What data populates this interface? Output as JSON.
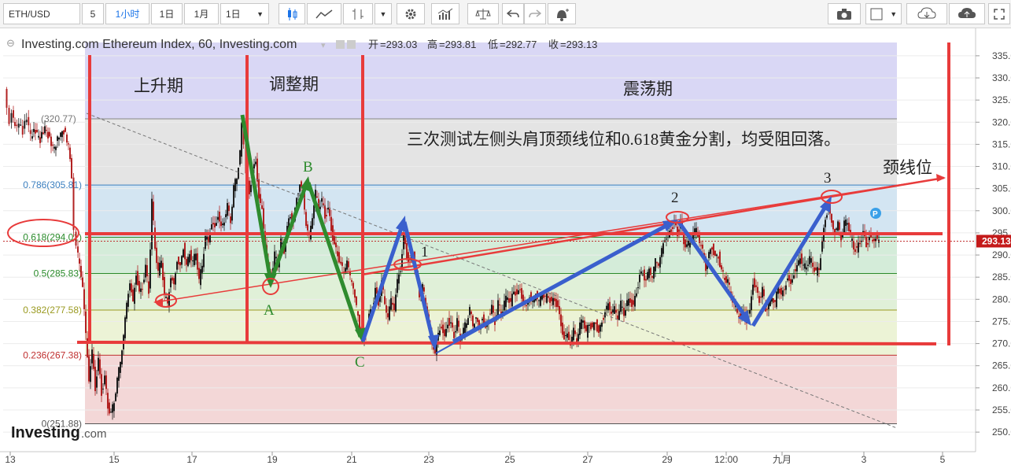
{
  "toolbar": {
    "symbol": "ETH/USD",
    "interval": "5",
    "interval_active": "1小时",
    "period_1d": "1日",
    "period_1m": "1月",
    "period_select": "1日",
    "dropdown_arrow": "▼"
  },
  "colors": {
    "up": "#1f1f1f",
    "down": "#b22222",
    "accent_red": "#e83b3b",
    "arrow_green": "#2e8b2e",
    "arrow_blue": "#3a5fcd"
  },
  "chart_data": {
    "type": "candlestick",
    "title": "Investing.com Ethereum Index, 60, Investing.com",
    "ohlc_readout": {
      "open_label": "开",
      "open": "293.03",
      "high_label": "高",
      "high": "293.81",
      "low_label": "低",
      "low": "292.77",
      "close_label": "收",
      "close": "293.13"
    },
    "last_price": "293.13",
    "ylim": [
      247,
      338
    ],
    "y_ticks": [
      250,
      255,
      260,
      265,
      270,
      275,
      280,
      285,
      290,
      295,
      300,
      305,
      310,
      315,
      320,
      325,
      330,
      335
    ],
    "x_ticks": [
      "13",
      "15",
      "17",
      "19",
      "21",
      "23",
      "25",
      "27",
      "29",
      "12:00",
      "九月",
      "3",
      "5"
    ],
    "fib_levels": [
      {
        "label": "0.786(305.81)",
        "value": 305.81,
        "color": "#3c7fbf"
      },
      {
        "label": "0.618(294.01)",
        "value": 294.01,
        "color": "#2a8a2a"
      },
      {
        "label": "0.5(285.83)",
        "value": 285.83,
        "color": "#2a8a2a"
      },
      {
        "label": "0.382(277.58)",
        "value": 277.58,
        "color": "#9a9a20"
      },
      {
        "label": "0.236(267.38)",
        "value": 267.38,
        "color": "#c03030"
      },
      {
        "label": "0(251.88)",
        "value": 251.88,
        "color": "#555555"
      }
    ],
    "fib_top_label": "(320.77)",
    "fib_top_value": 320.77,
    "price_path_points": [
      [
        7,
        328
      ],
      [
        10,
        324
      ],
      [
        13,
        320
      ],
      [
        16,
        322
      ],
      [
        20,
        319
      ],
      [
        25,
        320
      ],
      [
        30,
        318
      ],
      [
        35,
        321
      ],
      [
        40,
        317
      ],
      [
        46,
        318
      ],
      [
        52,
        316
      ],
      [
        58,
        319
      ],
      [
        64,
        316
      ],
      [
        70,
        314
      ],
      [
        76,
        317
      ],
      [
        82,
        318
      ],
      [
        88,
        315
      ],
      [
        92,
        308
      ],
      [
        95,
        296
      ],
      [
        98,
        292
      ],
      [
        102,
        288
      ],
      [
        106,
        283
      ],
      [
        110,
        272
      ],
      [
        114,
        262
      ],
      [
        118,
        268
      ],
      [
        122,
        260
      ],
      [
        126,
        266
      ],
      [
        130,
        259
      ],
      [
        134,
        262
      ],
      [
        138,
        256
      ],
      [
        142,
        254
      ],
      [
        146,
        257
      ],
      [
        150,
        262
      ],
      [
        154,
        266
      ],
      [
        158,
        272
      ],
      [
        162,
        279
      ],
      [
        166,
        284
      ],
      [
        170,
        279
      ],
      [
        174,
        286
      ],
      [
        178,
        281
      ],
      [
        182,
        283
      ],
      [
        186,
        287
      ],
      [
        190,
        282
      ],
      [
        194,
        302
      ],
      [
        198,
        292
      ],
      [
        202,
        286
      ],
      [
        206,
        289
      ],
      [
        210,
        281
      ],
      [
        214,
        279
      ],
      [
        218,
        285
      ],
      [
        222,
        283
      ],
      [
        226,
        289
      ],
      [
        230,
        287
      ],
      [
        234,
        292
      ],
      [
        238,
        287
      ],
      [
        242,
        291
      ],
      [
        246,
        288
      ],
      [
        250,
        291
      ],
      [
        254,
        284
      ],
      [
        258,
        288
      ],
      [
        262,
        294
      ],
      [
        266,
        293
      ],
      [
        270,
        297
      ],
      [
        274,
        296
      ],
      [
        278,
        299
      ],
      [
        282,
        296
      ],
      [
        286,
        298
      ],
      [
        290,
        301
      ],
      [
        294,
        298
      ],
      [
        298,
        305
      ],
      [
        302,
        308
      ],
      [
        306,
        313
      ],
      [
        308,
        319
      ],
      [
        311,
        315
      ],
      [
        314,
        308
      ],
      [
        318,
        304
      ],
      [
        322,
        309
      ],
      [
        326,
        311
      ],
      [
        330,
        303
      ],
      [
        334,
        300
      ],
      [
        338,
        292
      ],
      [
        342,
        287
      ],
      [
        346,
        285
      ],
      [
        350,
        290
      ],
      [
        354,
        288
      ],
      [
        358,
        293
      ],
      [
        362,
        291
      ],
      [
        366,
        296
      ],
      [
        370,
        299
      ],
      [
        374,
        297
      ],
      [
        378,
        303
      ],
      [
        382,
        306
      ],
      [
        386,
        304
      ],
      [
        390,
        297
      ],
      [
        394,
        294
      ],
      [
        398,
        299
      ],
      [
        402,
        304
      ],
      [
        406,
        301
      ],
      [
        410,
        302
      ],
      [
        414,
        299
      ],
      [
        418,
        300
      ],
      [
        422,
        296
      ],
      [
        426,
        292
      ],
      [
        430,
        290
      ],
      [
        434,
        288
      ],
      [
        438,
        286
      ],
      [
        442,
        289
      ],
      [
        446,
        285
      ],
      [
        450,
        283
      ],
      [
        454,
        278
      ],
      [
        458,
        274
      ],
      [
        462,
        271
      ],
      [
        466,
        273
      ],
      [
        470,
        276
      ],
      [
        474,
        278
      ],
      [
        478,
        282
      ],
      [
        482,
        279
      ],
      [
        486,
        284
      ],
      [
        490,
        279
      ],
      [
        494,
        276
      ],
      [
        498,
        280
      ],
      [
        502,
        278
      ],
      [
        506,
        284
      ],
      [
        510,
        287
      ],
      [
        514,
        294
      ],
      [
        518,
        290
      ],
      [
        522,
        288
      ],
      [
        526,
        290
      ],
      [
        530,
        286
      ],
      [
        534,
        281
      ],
      [
        538,
        283
      ],
      [
        542,
        279
      ],
      [
        546,
        275
      ],
      [
        550,
        270
      ],
      [
        554,
        268
      ],
      [
        558,
        272
      ],
      [
        562,
        274
      ],
      [
        566,
        271
      ],
      [
        570,
        275
      ],
      [
        574,
        274
      ],
      [
        578,
        272
      ],
      [
        582,
        275
      ],
      [
        586,
        271
      ],
      [
        590,
        273
      ],
      [
        594,
        275
      ],
      [
        598,
        278
      ],
      [
        602,
        274
      ],
      [
        606,
        276
      ],
      [
        610,
        273
      ],
      [
        614,
        276
      ],
      [
        618,
        273
      ],
      [
        622,
        276
      ],
      [
        626,
        278
      ],
      [
        630,
        275
      ],
      [
        634,
        279
      ],
      [
        638,
        277
      ],
      [
        642,
        279
      ],
      [
        646,
        281
      ],
      [
        650,
        279
      ],
      [
        654,
        282
      ],
      [
        658,
        281
      ],
      [
        662,
        282
      ],
      [
        666,
        279
      ],
      [
        670,
        278
      ],
      [
        674,
        281
      ],
      [
        678,
        279
      ],
      [
        682,
        282
      ],
      [
        686,
        279
      ],
      [
        690,
        282
      ],
      [
        694,
        280
      ],
      [
        698,
        281
      ],
      [
        702,
        279
      ],
      [
        706,
        280
      ],
      [
        710,
        278
      ],
      [
        714,
        274
      ],
      [
        718,
        271
      ],
      [
        722,
        272
      ],
      [
        726,
        270
      ],
      [
        730,
        273
      ],
      [
        734,
        271
      ],
      [
        738,
        274
      ],
      [
        742,
        276
      ],
      [
        746,
        272
      ],
      [
        750,
        275
      ],
      [
        754,
        273
      ],
      [
        758,
        275
      ],
      [
        762,
        272
      ],
      [
        766,
        275
      ],
      [
        770,
        277
      ],
      [
        774,
        279
      ],
      [
        778,
        277
      ],
      [
        782,
        278
      ],
      [
        786,
        276
      ],
      [
        790,
        279
      ],
      [
        794,
        277
      ],
      [
        798,
        279
      ],
      [
        802,
        280
      ],
      [
        806,
        278
      ],
      [
        810,
        282
      ],
      [
        814,
        285
      ],
      [
        818,
        286
      ],
      [
        822,
        284
      ],
      [
        826,
        287
      ],
      [
        830,
        285
      ],
      [
        834,
        289
      ],
      [
        838,
        288
      ],
      [
        842,
        291
      ],
      [
        846,
        294
      ],
      [
        850,
        294
      ],
      [
        854,
        296
      ],
      [
        858,
        297
      ],
      [
        862,
        295
      ],
      [
        866,
        297
      ],
      [
        870,
        293
      ],
      [
        874,
        292
      ],
      [
        878,
        293
      ],
      [
        882,
        295
      ],
      [
        886,
        296
      ],
      [
        890,
        293
      ],
      [
        894,
        291
      ],
      [
        898,
        287
      ],
      [
        902,
        290
      ],
      [
        906,
        292
      ],
      [
        910,
        289
      ],
      [
        914,
        290
      ],
      [
        918,
        286
      ],
      [
        922,
        285
      ],
      [
        926,
        284
      ],
      [
        930,
        281
      ],
      [
        934,
        279
      ],
      [
        938,
        277
      ],
      [
        942,
        276
      ],
      [
        946,
        277
      ],
      [
        950,
        275
      ],
      [
        954,
        277
      ],
      [
        958,
        284
      ],
      [
        962,
        282
      ],
      [
        966,
        280
      ],
      [
        970,
        282
      ],
      [
        974,
        278
      ],
      [
        978,
        279
      ],
      [
        982,
        281
      ],
      [
        986,
        279
      ],
      [
        990,
        283
      ],
      [
        994,
        281
      ],
      [
        998,
        282
      ],
      [
        1002,
        285
      ],
      [
        1006,
        283
      ],
      [
        1010,
        286
      ],
      [
        1014,
        287
      ],
      [
        1018,
        290
      ],
      [
        1022,
        287
      ],
      [
        1026,
        288
      ],
      [
        1030,
        289
      ],
      [
        1034,
        288
      ],
      [
        1038,
        286
      ],
      [
        1042,
        287
      ],
      [
        1046,
        293
      ],
      [
        1050,
        298
      ],
      [
        1054,
        301
      ],
      [
        1058,
        297
      ],
      [
        1062,
        295
      ],
      [
        1066,
        297
      ],
      [
        1070,
        294
      ],
      [
        1074,
        297
      ],
      [
        1078,
        298
      ],
      [
        1082,
        294
      ],
      [
        1086,
        292
      ],
      [
        1090,
        291
      ],
      [
        1094,
        293
      ],
      [
        1098,
        295
      ],
      [
        1102,
        292
      ],
      [
        1106,
        294
      ],
      [
        1110,
        293
      ],
      [
        1114,
        294
      ],
      [
        1118,
        293
      ]
    ]
  },
  "annotations": {
    "phase_1": "上升期",
    "phase_2": "调整期",
    "phase_3": "震荡期",
    "note": "三次测试左侧头肩顶颈线位和0.618黄金分割，均受阻回落。",
    "neckline_label": "颈线位",
    "point_A": "A",
    "point_B": "B",
    "point_C": "C",
    "touch_1": "1",
    "touch_2": "2",
    "touch_3": "3",
    "marker_P": "P"
  },
  "watermark": {
    "brand": "Investing",
    "suffix": ".com"
  }
}
